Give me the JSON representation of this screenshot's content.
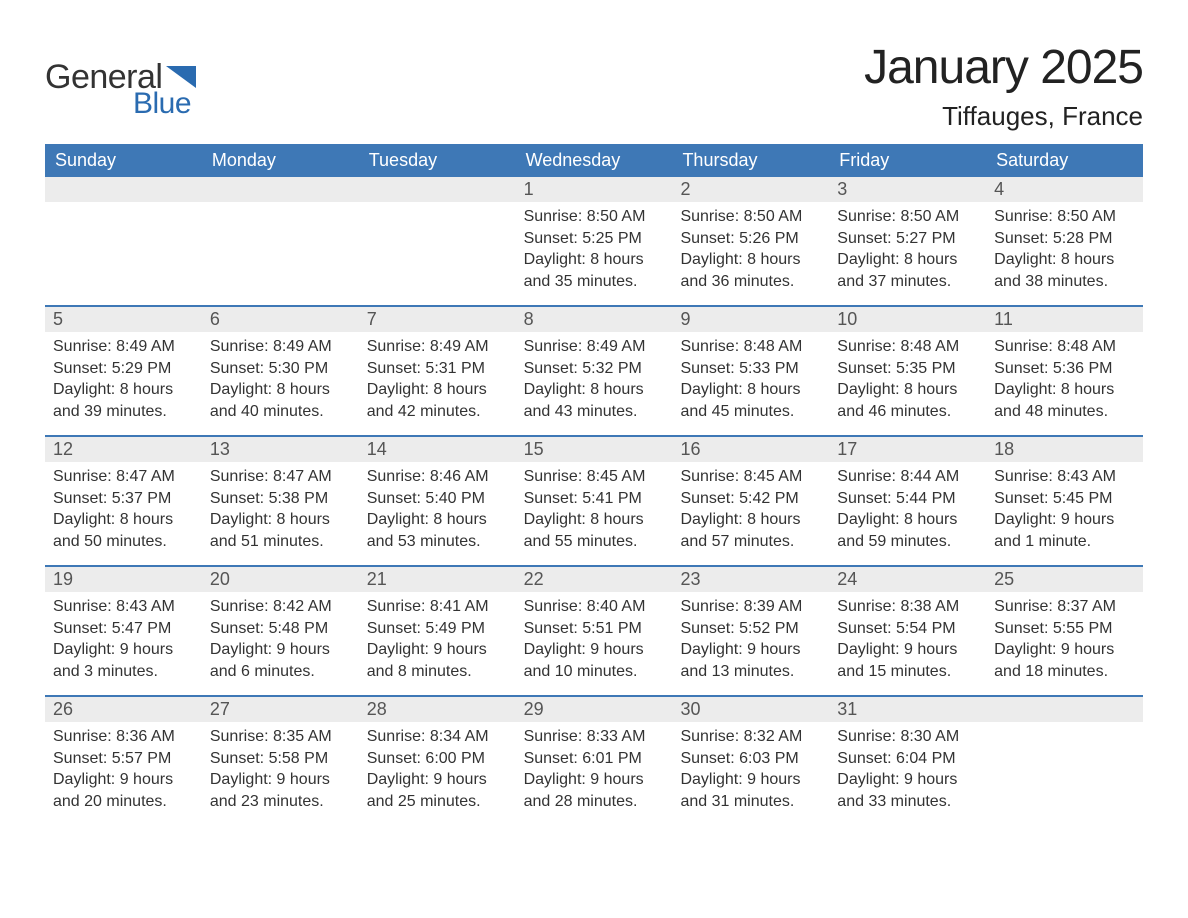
{
  "logo": {
    "word1": "General",
    "word2": "Blue",
    "text_color": "#333333",
    "accent_color": "#2a6bb0"
  },
  "title": "January 2025",
  "location": "Tiffauges, France",
  "colors": {
    "header_bg": "#3e78b6",
    "header_text": "#ffffff",
    "daynum_bg": "#ececec",
    "daynum_text": "#555555",
    "row_border": "#3e78b6",
    "body_text": "#333333",
    "page_bg": "#ffffff"
  },
  "typography": {
    "title_fontsize": 48,
    "location_fontsize": 26,
    "weekday_fontsize": 18,
    "daynum_fontsize": 18,
    "body_fontsize": 16,
    "font_family": "Arial"
  },
  "weekdays": [
    "Sunday",
    "Monday",
    "Tuesday",
    "Wednesday",
    "Thursday",
    "Friday",
    "Saturday"
  ],
  "weeks": [
    [
      {
        "num": "",
        "sunrise": "",
        "sunset": "",
        "daylight": ""
      },
      {
        "num": "",
        "sunrise": "",
        "sunset": "",
        "daylight": ""
      },
      {
        "num": "",
        "sunrise": "",
        "sunset": "",
        "daylight": ""
      },
      {
        "num": "1",
        "sunrise": "Sunrise: 8:50 AM",
        "sunset": "Sunset: 5:25 PM",
        "daylight": "Daylight: 8 hours and 35 minutes."
      },
      {
        "num": "2",
        "sunrise": "Sunrise: 8:50 AM",
        "sunset": "Sunset: 5:26 PM",
        "daylight": "Daylight: 8 hours and 36 minutes."
      },
      {
        "num": "3",
        "sunrise": "Sunrise: 8:50 AM",
        "sunset": "Sunset: 5:27 PM",
        "daylight": "Daylight: 8 hours and 37 minutes."
      },
      {
        "num": "4",
        "sunrise": "Sunrise: 8:50 AM",
        "sunset": "Sunset: 5:28 PM",
        "daylight": "Daylight: 8 hours and 38 minutes."
      }
    ],
    [
      {
        "num": "5",
        "sunrise": "Sunrise: 8:49 AM",
        "sunset": "Sunset: 5:29 PM",
        "daylight": "Daylight: 8 hours and 39 minutes."
      },
      {
        "num": "6",
        "sunrise": "Sunrise: 8:49 AM",
        "sunset": "Sunset: 5:30 PM",
        "daylight": "Daylight: 8 hours and 40 minutes."
      },
      {
        "num": "7",
        "sunrise": "Sunrise: 8:49 AM",
        "sunset": "Sunset: 5:31 PM",
        "daylight": "Daylight: 8 hours and 42 minutes."
      },
      {
        "num": "8",
        "sunrise": "Sunrise: 8:49 AM",
        "sunset": "Sunset: 5:32 PM",
        "daylight": "Daylight: 8 hours and 43 minutes."
      },
      {
        "num": "9",
        "sunrise": "Sunrise: 8:48 AM",
        "sunset": "Sunset: 5:33 PM",
        "daylight": "Daylight: 8 hours and 45 minutes."
      },
      {
        "num": "10",
        "sunrise": "Sunrise: 8:48 AM",
        "sunset": "Sunset: 5:35 PM",
        "daylight": "Daylight: 8 hours and 46 minutes."
      },
      {
        "num": "11",
        "sunrise": "Sunrise: 8:48 AM",
        "sunset": "Sunset: 5:36 PM",
        "daylight": "Daylight: 8 hours and 48 minutes."
      }
    ],
    [
      {
        "num": "12",
        "sunrise": "Sunrise: 8:47 AM",
        "sunset": "Sunset: 5:37 PM",
        "daylight": "Daylight: 8 hours and 50 minutes."
      },
      {
        "num": "13",
        "sunrise": "Sunrise: 8:47 AM",
        "sunset": "Sunset: 5:38 PM",
        "daylight": "Daylight: 8 hours and 51 minutes."
      },
      {
        "num": "14",
        "sunrise": "Sunrise: 8:46 AM",
        "sunset": "Sunset: 5:40 PM",
        "daylight": "Daylight: 8 hours and 53 minutes."
      },
      {
        "num": "15",
        "sunrise": "Sunrise: 8:45 AM",
        "sunset": "Sunset: 5:41 PM",
        "daylight": "Daylight: 8 hours and 55 minutes."
      },
      {
        "num": "16",
        "sunrise": "Sunrise: 8:45 AM",
        "sunset": "Sunset: 5:42 PM",
        "daylight": "Daylight: 8 hours and 57 minutes."
      },
      {
        "num": "17",
        "sunrise": "Sunrise: 8:44 AM",
        "sunset": "Sunset: 5:44 PM",
        "daylight": "Daylight: 8 hours and 59 minutes."
      },
      {
        "num": "18",
        "sunrise": "Sunrise: 8:43 AM",
        "sunset": "Sunset: 5:45 PM",
        "daylight": "Daylight: 9 hours and 1 minute."
      }
    ],
    [
      {
        "num": "19",
        "sunrise": "Sunrise: 8:43 AM",
        "sunset": "Sunset: 5:47 PM",
        "daylight": "Daylight: 9 hours and 3 minutes."
      },
      {
        "num": "20",
        "sunrise": "Sunrise: 8:42 AM",
        "sunset": "Sunset: 5:48 PM",
        "daylight": "Daylight: 9 hours and 6 minutes."
      },
      {
        "num": "21",
        "sunrise": "Sunrise: 8:41 AM",
        "sunset": "Sunset: 5:49 PM",
        "daylight": "Daylight: 9 hours and 8 minutes."
      },
      {
        "num": "22",
        "sunrise": "Sunrise: 8:40 AM",
        "sunset": "Sunset: 5:51 PM",
        "daylight": "Daylight: 9 hours and 10 minutes."
      },
      {
        "num": "23",
        "sunrise": "Sunrise: 8:39 AM",
        "sunset": "Sunset: 5:52 PM",
        "daylight": "Daylight: 9 hours and 13 minutes."
      },
      {
        "num": "24",
        "sunrise": "Sunrise: 8:38 AM",
        "sunset": "Sunset: 5:54 PM",
        "daylight": "Daylight: 9 hours and 15 minutes."
      },
      {
        "num": "25",
        "sunrise": "Sunrise: 8:37 AM",
        "sunset": "Sunset: 5:55 PM",
        "daylight": "Daylight: 9 hours and 18 minutes."
      }
    ],
    [
      {
        "num": "26",
        "sunrise": "Sunrise: 8:36 AM",
        "sunset": "Sunset: 5:57 PM",
        "daylight": "Daylight: 9 hours and 20 minutes."
      },
      {
        "num": "27",
        "sunrise": "Sunrise: 8:35 AM",
        "sunset": "Sunset: 5:58 PM",
        "daylight": "Daylight: 9 hours and 23 minutes."
      },
      {
        "num": "28",
        "sunrise": "Sunrise: 8:34 AM",
        "sunset": "Sunset: 6:00 PM",
        "daylight": "Daylight: 9 hours and 25 minutes."
      },
      {
        "num": "29",
        "sunrise": "Sunrise: 8:33 AM",
        "sunset": "Sunset: 6:01 PM",
        "daylight": "Daylight: 9 hours and 28 minutes."
      },
      {
        "num": "30",
        "sunrise": "Sunrise: 8:32 AM",
        "sunset": "Sunset: 6:03 PM",
        "daylight": "Daylight: 9 hours and 31 minutes."
      },
      {
        "num": "31",
        "sunrise": "Sunrise: 8:30 AM",
        "sunset": "Sunset: 6:04 PM",
        "daylight": "Daylight: 9 hours and 33 minutes."
      },
      {
        "num": "",
        "sunrise": "",
        "sunset": "",
        "daylight": ""
      }
    ]
  ]
}
